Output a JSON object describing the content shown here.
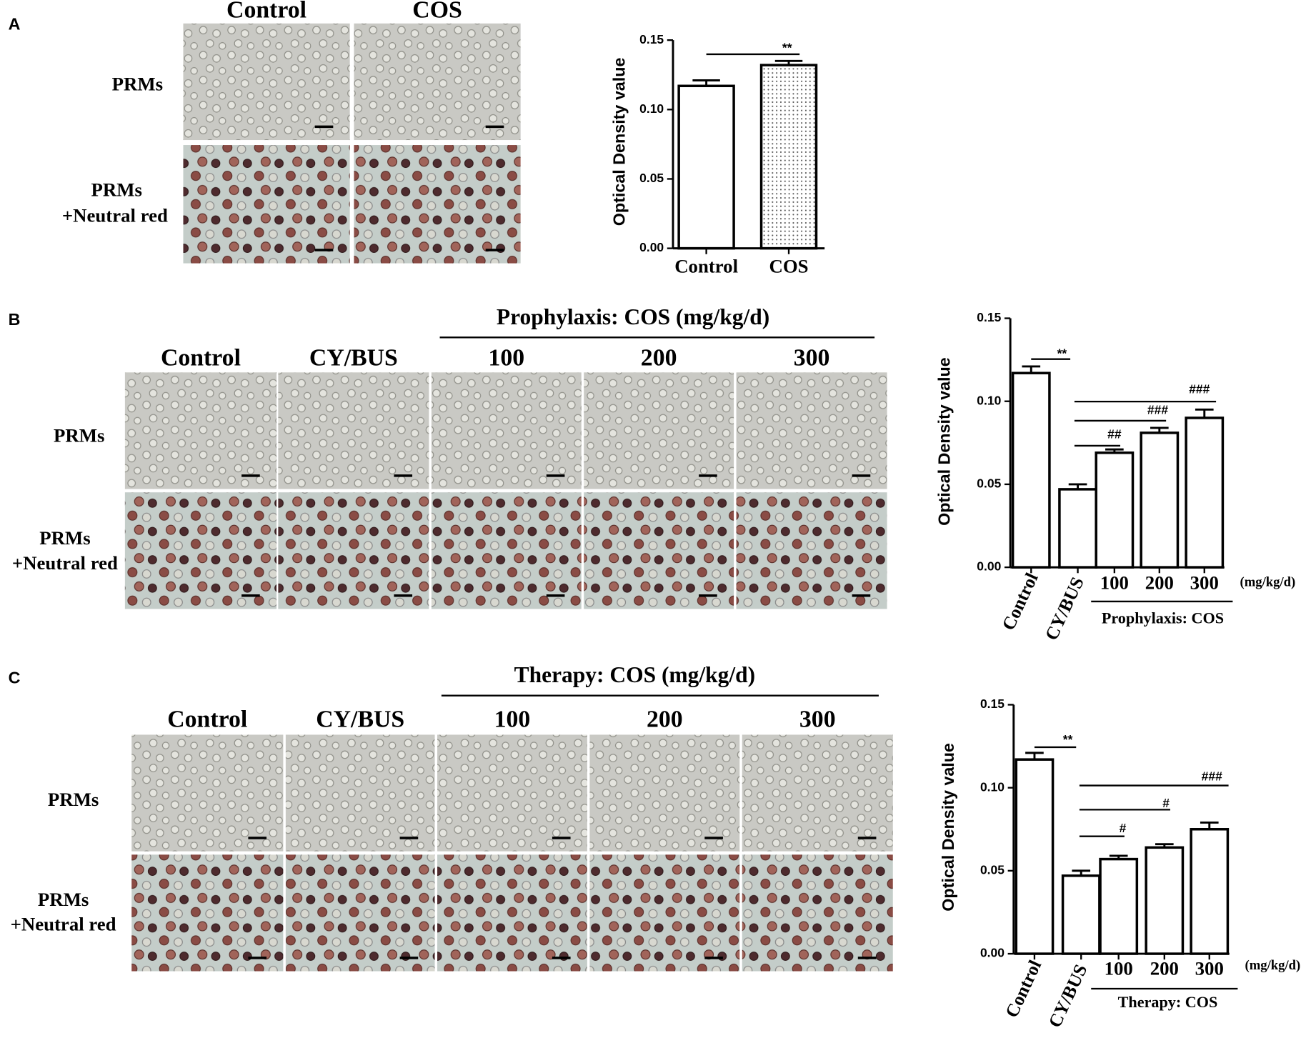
{
  "panels": [
    {
      "label": "A",
      "columns": [
        "Control",
        "COS"
      ],
      "rows": [
        [
          "PRMs"
        ],
        [
          "PRMs",
          "+Neutral red"
        ]
      ]
    },
    {
      "label": "B",
      "header": "Prophylaxis: COS (mg/kg/d)",
      "columns": [
        "Control",
        "CY/BUS",
        "100",
        "200",
        "300"
      ],
      "rows": [
        [
          "PRMs"
        ],
        [
          "PRMs",
          "+Neutral red"
        ]
      ]
    },
    {
      "label": "C",
      "header": "Therapy: COS (mg/kg/d)",
      "columns": [
        "Control",
        "CY/BUS",
        "100",
        "200",
        "300"
      ],
      "rows": [
        [
          "PRMs"
        ],
        [
          "PRMs",
          "+Neutral red"
        ]
      ]
    }
  ],
  "chart_data": [
    {
      "type": "bar",
      "ylabel": "Optical Density value",
      "categories": [
        "Control",
        "COS"
      ],
      "values": [
        0.117,
        0.132
      ],
      "errors": [
        0.004,
        0.003
      ],
      "colors": [
        "#ffffff",
        "dots"
      ],
      "ylim": [
        0,
        0.15
      ],
      "yticks": [
        {
          "value": 0,
          "label": "0.00"
        },
        {
          "value": 0.05,
          "label": "0.05"
        },
        {
          "value": 0.1,
          "label": "0.10"
        },
        {
          "value": 0.15,
          "label": "0.15"
        }
      ],
      "annotations": [
        "**"
      ]
    },
    {
      "type": "bar",
      "ylabel": "Optical Density value",
      "categories": [
        "Control",
        "CY/BUS",
        "100",
        "200",
        "300"
      ],
      "values": [
        0.117,
        0.047,
        0.069,
        0.081,
        0.09
      ],
      "errors": [
        0.004,
        0.003,
        0.002,
        0.003,
        0.005
      ],
      "ylim": [
        0,
        0.15
      ],
      "yticks": [
        {
          "value": 0,
          "label": "0.00"
        },
        {
          "value": 0.05,
          "label": "0.05"
        },
        {
          "value": 0.1,
          "label": "0.10"
        },
        {
          "value": 0.15,
          "label": "0.15"
        }
      ],
      "unit": "(mg/kg/d)",
      "group_label": "Prophylaxis: COS",
      "annotations": [
        "**",
        "##",
        "###",
        "###"
      ]
    },
    {
      "type": "bar",
      "ylabel": "Optical Density value",
      "categories": [
        "Control",
        "CY/BUS",
        "100",
        "200",
        "300"
      ],
      "values": [
        0.117,
        0.047,
        0.057,
        0.064,
        0.075
      ],
      "errors": [
        0.004,
        0.003,
        0.002,
        0.002,
        0.004
      ],
      "ylim": [
        0,
        0.15
      ],
      "yticks": [
        {
          "value": 0,
          "label": "0.00"
        },
        {
          "value": 0.05,
          "label": "0.05"
        },
        {
          "value": 0.1,
          "label": "0.10"
        },
        {
          "value": 0.15,
          "label": "0.15"
        }
      ],
      "unit": "(mg/kg/d)",
      "group_label": "Therapy: COS",
      "annotations": [
        "**",
        "#",
        "#",
        "###"
      ]
    }
  ]
}
